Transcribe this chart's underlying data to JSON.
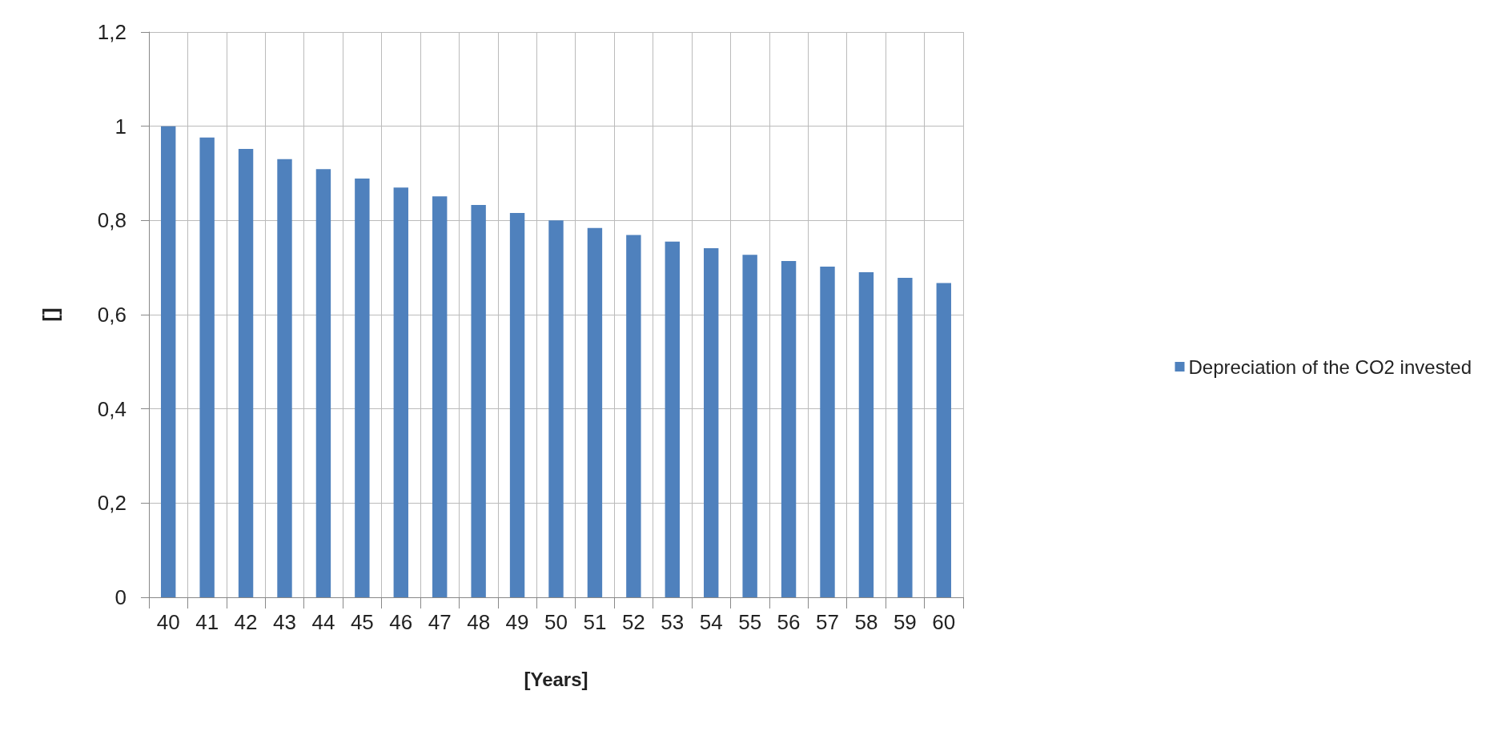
{
  "chart_data": {
    "type": "bar",
    "xlabel": "[Years]",
    "ylabel": "[]",
    "categories": [
      "40",
      "41",
      "42",
      "43",
      "44",
      "45",
      "46",
      "47",
      "48",
      "49",
      "50",
      "51",
      "52",
      "53",
      "54",
      "55",
      "56",
      "57",
      "58",
      "59",
      "60"
    ],
    "series": [
      {
        "name": "Depreciation of the CO2 invested",
        "color": "#4f81bd",
        "values": [
          1.0,
          0.976,
          0.952,
          0.93,
          0.909,
          0.889,
          0.87,
          0.851,
          0.833,
          0.816,
          0.8,
          0.784,
          0.769,
          0.755,
          0.741,
          0.727,
          0.714,
          0.702,
          0.69,
          0.678,
          0.667
        ]
      }
    ],
    "ylim": [
      0,
      1.2
    ],
    "yticks": [
      0,
      {
        "value": 0.2,
        "label": "0,2"
      },
      {
        "value": 0.4,
        "label": "0,4"
      },
      {
        "value": 0.6,
        "label": "0,6"
      },
      {
        "value": 0.8,
        "label": "0,8"
      },
      1,
      {
        "value": 1.2,
        "label": "1,2"
      }
    ],
    "grid": true,
    "legend": "right"
  }
}
